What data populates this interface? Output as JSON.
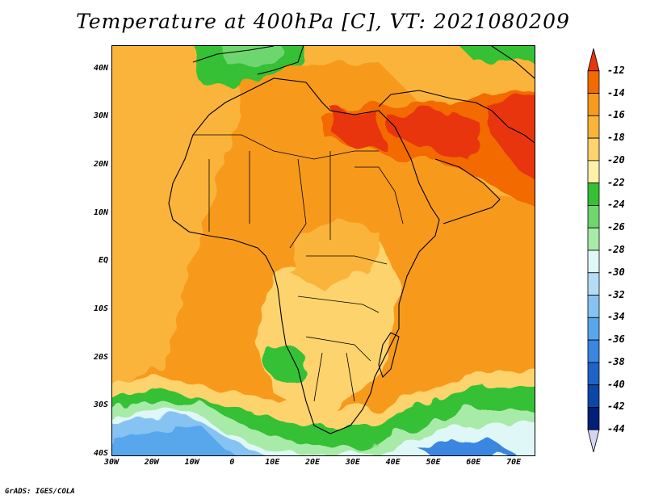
{
  "title": "Temperature at 400hPa [C], VT: 2021080209",
  "credit": "GrADS: IGES/COLA",
  "map": {
    "lat_labels": [
      {
        "lat": 40,
        "text": "40N"
      },
      {
        "lat": 30,
        "text": "30N"
      },
      {
        "lat": 20,
        "text": "20N"
      },
      {
        "lat": 10,
        "text": "10N"
      },
      {
        "lat": 0,
        "text": "EQ"
      },
      {
        "lat": -10,
        "text": "10S"
      },
      {
        "lat": -20,
        "text": "20S"
      },
      {
        "lat": -30,
        "text": "30S"
      },
      {
        "lat": -40,
        "text": "40S"
      }
    ],
    "lon_labels": [
      {
        "lon": -30,
        "text": "30W"
      },
      {
        "lon": -20,
        "text": "20W"
      },
      {
        "lon": -10,
        "text": "10W"
      },
      {
        "lon": 0,
        "text": "0"
      },
      {
        "lon": 10,
        "text": "10E"
      },
      {
        "lon": 20,
        "text": "20E"
      },
      {
        "lon": 30,
        "text": "30E"
      },
      {
        "lon": 40,
        "text": "40E"
      },
      {
        "lon": 50,
        "text": "50E"
      },
      {
        "lon": 60,
        "text": "60E"
      },
      {
        "lon": 70,
        "text": "70E"
      }
    ],
    "lon_range": [
      -30,
      75
    ],
    "lat_range": [
      -40,
      45
    ]
  },
  "colorbar": {
    "levels": [
      "-12",
      "-14",
      "-16",
      "-18",
      "-20",
      "-22",
      "-24",
      "-26",
      "-28",
      "-30",
      "-32",
      "-34",
      "-36",
      "-38",
      "-40",
      "-42",
      "-44"
    ],
    "colors": [
      "#e8350c",
      "#f26a00",
      "#f79a1e",
      "#fbb43a",
      "#fdd36e",
      "#fef0a8",
      "#35c035",
      "#6ed66e",
      "#a8eba8",
      "#dff7f7",
      "#b4dcf7",
      "#86c3f2",
      "#58a6eb",
      "#3a86e0",
      "#1f63c7",
      "#0c46a6",
      "#041f78",
      "#d4d4f2"
    ]
  }
}
